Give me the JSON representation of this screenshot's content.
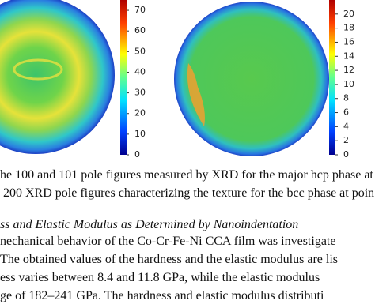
{
  "figure": {
    "colorbars": [
      {
        "lim": [
          0,
          75
        ],
        "ticks": [
          0,
          10,
          20,
          30,
          40,
          50,
          60,
          70
        ]
      },
      {
        "lim": [
          0,
          22
        ],
        "ticks": [
          0,
          2,
          4,
          6,
          8,
          10,
          12,
          14,
          16,
          18,
          20
        ]
      }
    ]
  },
  "caption": {
    "lines": [
      "he 100 and 101 pole figures measured by XRD for the major hcp phase at",
      " 200 XRD pole figures characterizing the texture for the bcc phase at poin"
    ]
  },
  "section": {
    "heading": "ss and Elastic Modulus as Determined by Nanoindentation",
    "lines": [
      "nechanical behavior of the Co-Cr-Fe-Ni CCA film was investigate",
      "The obtained values of the hardness and the elastic modulus are lis",
      "ess varies between 8.4 and 11.8 GPa, while the elastic modulus",
      "ge of 182–241 GPa. The hardness and elastic modulus distributi"
    ]
  }
}
